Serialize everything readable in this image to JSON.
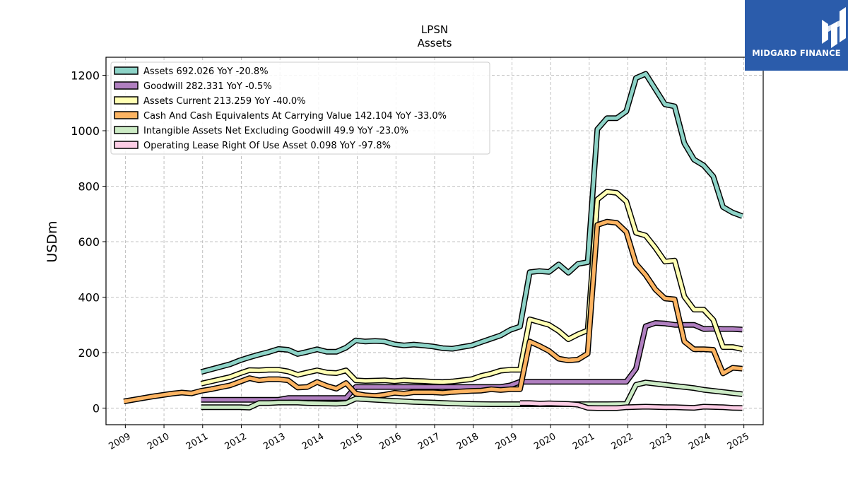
{
  "logo": {
    "text": "MIDGARD FINANCE",
    "icon": "midgard-logo-icon",
    "bg": "#2b5cab"
  },
  "chart_data": {
    "type": "line",
    "title": "LPSN",
    "subtitle": "Assets",
    "ylabel": "USDm",
    "xlabel": "",
    "xlim": [
      2008.5,
      2025.5
    ],
    "ylim": [
      -60,
      1265
    ],
    "yticks": [
      0,
      200,
      400,
      600,
      800,
      1000,
      1200
    ],
    "xticks": [
      2009,
      2010,
      2011,
      2012,
      2013,
      2014,
      2015,
      2016,
      2017,
      2018,
      2019,
      2020,
      2021,
      2022,
      2023,
      2024,
      2025
    ],
    "grid": true,
    "legend_position": "upper-left",
    "series": [
      {
        "name": "Assets",
        "legend": "Assets  692.026 YoY -20.8%",
        "color": "#8dd3c7",
        "points": [
          [
            2010.96,
            130
          ],
          [
            2011.71,
            158
          ],
          [
            2011.96,
            172
          ],
          [
            2012.21,
            183
          ],
          [
            2012.46,
            193
          ],
          [
            2012.71,
            202
          ],
          [
            2012.96,
            213
          ],
          [
            2013.21,
            210
          ],
          [
            2013.46,
            195
          ],
          [
            2013.71,
            203
          ],
          [
            2013.96,
            212
          ],
          [
            2014.21,
            203
          ],
          [
            2014.46,
            203
          ],
          [
            2014.71,
            218
          ],
          [
            2014.96,
            244
          ],
          [
            2015.21,
            240
          ],
          [
            2015.46,
            242
          ],
          [
            2015.71,
            240
          ],
          [
            2015.96,
            230
          ],
          [
            2016.21,
            226
          ],
          [
            2016.46,
            229
          ],
          [
            2016.71,
            226
          ],
          [
            2016.96,
            222
          ],
          [
            2017.21,
            216
          ],
          [
            2017.46,
            214
          ],
          [
            2017.71,
            220
          ],
          [
            2017.96,
            226
          ],
          [
            2018.21,
            238
          ],
          [
            2018.46,
            250
          ],
          [
            2018.71,
            262
          ],
          [
            2018.96,
            282
          ],
          [
            2019.21,
            294
          ],
          [
            2019.46,
            490
          ],
          [
            2019.71,
            494
          ],
          [
            2019.96,
            491
          ],
          [
            2020.21,
            518
          ],
          [
            2020.46,
            488
          ],
          [
            2020.71,
            520
          ],
          [
            2020.96,
            526
          ],
          [
            2021.21,
            1005
          ],
          [
            2021.46,
            1045
          ],
          [
            2021.71,
            1045
          ],
          [
            2021.96,
            1070
          ],
          [
            2022.21,
            1190
          ],
          [
            2022.46,
            1205
          ],
          [
            2022.71,
            1150
          ],
          [
            2022.96,
            1095
          ],
          [
            2023.21,
            1088
          ],
          [
            2023.46,
            955
          ],
          [
            2023.71,
            896
          ],
          [
            2023.96,
            875
          ],
          [
            2024.21,
            835
          ],
          [
            2024.46,
            725
          ],
          [
            2024.71,
            705
          ],
          [
            2024.96,
            692
          ]
        ]
      },
      {
        "name": "Goodwill",
        "legend": "Goodwill  282.331 YoY -0.5%",
        "color": "#b07fc0",
        "points": [
          [
            2010.96,
            30
          ],
          [
            2012.96,
            30
          ],
          [
            2013.21,
            36
          ],
          [
            2014.71,
            36
          ],
          [
            2014.96,
            76
          ],
          [
            2018.71,
            76
          ],
          [
            2018.96,
            82
          ],
          [
            2019.21,
            95
          ],
          [
            2019.46,
            95
          ],
          [
            2021.96,
            95
          ],
          [
            2022.21,
            142
          ],
          [
            2022.46,
            295
          ],
          [
            2022.71,
            307
          ],
          [
            2022.96,
            305
          ],
          [
            2023.21,
            300
          ],
          [
            2023.46,
            300
          ],
          [
            2023.71,
            300
          ],
          [
            2023.96,
            285
          ],
          [
            2024.21,
            286
          ],
          [
            2024.46,
            285
          ],
          [
            2024.71,
            285
          ],
          [
            2024.96,
            283
          ]
        ]
      },
      {
        "name": "Assets Current",
        "legend": "Assets Current  213.259 YoY -40.0%",
        "color": "#ffffb3",
        "points": [
          [
            2010.96,
            88
          ],
          [
            2011.71,
            112
          ],
          [
            2011.96,
            125
          ],
          [
            2012.21,
            137
          ],
          [
            2012.46,
            136
          ],
          [
            2012.71,
            138
          ],
          [
            2012.96,
            138
          ],
          [
            2013.21,
            132
          ],
          [
            2013.46,
            120
          ],
          [
            2013.71,
            128
          ],
          [
            2013.96,
            136
          ],
          [
            2014.21,
            128
          ],
          [
            2014.46,
            126
          ],
          [
            2014.71,
            136
          ],
          [
            2014.96,
            100
          ],
          [
            2015.21,
            98
          ],
          [
            2015.46,
            99
          ],
          [
            2015.71,
            100
          ],
          [
            2015.96,
            97
          ],
          [
            2016.21,
            100
          ],
          [
            2016.46,
            98
          ],
          [
            2016.71,
            97
          ],
          [
            2016.96,
            95
          ],
          [
            2017.21,
            94
          ],
          [
            2017.46,
            96
          ],
          [
            2017.71,
            100
          ],
          [
            2017.96,
            104
          ],
          [
            2018.21,
            116
          ],
          [
            2018.46,
            124
          ],
          [
            2018.71,
            135
          ],
          [
            2018.96,
            138
          ],
          [
            2019.21,
            138
          ],
          [
            2019.46,
            320
          ],
          [
            2019.71,
            310
          ],
          [
            2019.96,
            300
          ],
          [
            2020.21,
            278
          ],
          [
            2020.46,
            248
          ],
          [
            2020.71,
            266
          ],
          [
            2020.96,
            280
          ],
          [
            2021.21,
            752
          ],
          [
            2021.46,
            780
          ],
          [
            2021.71,
            776
          ],
          [
            2021.96,
            745
          ],
          [
            2022.21,
            632
          ],
          [
            2022.46,
            622
          ],
          [
            2022.71,
            578
          ],
          [
            2022.96,
            528
          ],
          [
            2023.21,
            532
          ],
          [
            2023.46,
            402
          ],
          [
            2023.71,
            355
          ],
          [
            2023.96,
            355
          ],
          [
            2024.21,
            318
          ],
          [
            2024.46,
            220
          ],
          [
            2024.71,
            220
          ],
          [
            2024.96,
            213
          ]
        ]
      },
      {
        "name": "Cash And Cash Equivalents At Carrying Value",
        "legend": "Cash And Cash Equivalents At Carrying Value  142.104 YoY -33.0%",
        "color": "#fdb462",
        "points": [
          [
            2008.96,
            24
          ],
          [
            2009.21,
            30
          ],
          [
            2009.46,
            36
          ],
          [
            2009.71,
            42
          ],
          [
            2009.96,
            47
          ],
          [
            2010.21,
            52
          ],
          [
            2010.46,
            56
          ],
          [
            2010.71,
            53
          ],
          [
            2010.96,
            62
          ],
          [
            2011.21,
            68
          ],
          [
            2011.46,
            75
          ],
          [
            2011.71,
            82
          ],
          [
            2011.96,
            95
          ],
          [
            2012.21,
            108
          ],
          [
            2012.46,
            100
          ],
          [
            2012.71,
            104
          ],
          [
            2012.96,
            104
          ],
          [
            2013.21,
            100
          ],
          [
            2013.46,
            74
          ],
          [
            2013.71,
            76
          ],
          [
            2013.96,
            94
          ],
          [
            2014.21,
            80
          ],
          [
            2014.46,
            70
          ],
          [
            2014.71,
            90
          ],
          [
            2014.96,
            52
          ],
          [
            2015.21,
            46
          ],
          [
            2015.46,
            44
          ],
          [
            2015.71,
            48
          ],
          [
            2015.96,
            55
          ],
          [
            2016.21,
            52
          ],
          [
            2016.46,
            57
          ],
          [
            2016.71,
            57
          ],
          [
            2016.96,
            57
          ],
          [
            2017.21,
            55
          ],
          [
            2017.46,
            58
          ],
          [
            2017.71,
            60
          ],
          [
            2017.96,
            62
          ],
          [
            2018.21,
            63
          ],
          [
            2018.46,
            68
          ],
          [
            2018.71,
            65
          ],
          [
            2018.96,
            68
          ],
          [
            2019.21,
            68
          ],
          [
            2019.46,
            240
          ],
          [
            2019.71,
            224
          ],
          [
            2019.96,
            206
          ],
          [
            2020.21,
            178
          ],
          [
            2020.46,
            172
          ],
          [
            2020.71,
            175
          ],
          [
            2020.96,
            196
          ],
          [
            2021.21,
            660
          ],
          [
            2021.46,
            672
          ],
          [
            2021.71,
            668
          ],
          [
            2021.96,
            635
          ],
          [
            2022.21,
            520
          ],
          [
            2022.46,
            480
          ],
          [
            2022.71,
            428
          ],
          [
            2022.96,
            395
          ],
          [
            2023.21,
            392
          ],
          [
            2023.46,
            240
          ],
          [
            2023.71,
            212
          ],
          [
            2023.96,
            212
          ],
          [
            2024.21,
            210
          ],
          [
            2024.46,
            125
          ],
          [
            2024.71,
            145
          ],
          [
            2024.96,
            142
          ]
        ]
      },
      {
        "name": "Intangible Assets Net Excluding Goodwill",
        "legend": "Intangible Assets Net Excluding Goodwill  49.9 YoY -23.0%",
        "color": "#ccebc5",
        "points": [
          [
            2010.96,
            3
          ],
          [
            2011.96,
            3
          ],
          [
            2012.21,
            2
          ],
          [
            2012.46,
            18
          ],
          [
            2012.71,
            18
          ],
          [
            2012.96,
            20
          ],
          [
            2013.46,
            20
          ],
          [
            2013.71,
            18
          ],
          [
            2014.46,
            16
          ],
          [
            2014.71,
            18
          ],
          [
            2014.96,
            34
          ],
          [
            2015.46,
            30
          ],
          [
            2015.96,
            26
          ],
          [
            2016.46,
            22
          ],
          [
            2016.96,
            20
          ],
          [
            2017.46,
            17
          ],
          [
            2017.96,
            15
          ],
          [
            2018.46,
            14
          ],
          [
            2018.96,
            14
          ],
          [
            2019.21,
            14
          ],
          [
            2019.96,
            14
          ],
          [
            2020.46,
            14
          ],
          [
            2020.96,
            14
          ],
          [
            2021.46,
            14
          ],
          [
            2021.96,
            15
          ],
          [
            2022.21,
            84
          ],
          [
            2022.46,
            92
          ],
          [
            2022.71,
            88
          ],
          [
            2022.96,
            84
          ],
          [
            2023.21,
            80
          ],
          [
            2023.46,
            76
          ],
          [
            2023.71,
            72
          ],
          [
            2023.96,
            66
          ],
          [
            2024.21,
            62
          ],
          [
            2024.46,
            58
          ],
          [
            2024.71,
            54
          ],
          [
            2024.96,
            50
          ]
        ]
      },
      {
        "name": "Operating Lease Right Of Use Asset",
        "legend": "Operating Lease Right Of Use Asset  0.098 YoY -97.8%",
        "color": "#fccde5",
        "points": [
          [
            2019.21,
            18
          ],
          [
            2019.46,
            18
          ],
          [
            2019.71,
            16
          ],
          [
            2019.96,
            17
          ],
          [
            2020.21,
            16
          ],
          [
            2020.46,
            15
          ],
          [
            2020.71,
            12
          ],
          [
            2020.96,
            1
          ],
          [
            2021.21,
            0
          ],
          [
            2021.46,
            0
          ],
          [
            2021.71,
            0
          ],
          [
            2021.96,
            3
          ],
          [
            2022.21,
            4
          ],
          [
            2022.46,
            5
          ],
          [
            2022.71,
            4
          ],
          [
            2022.96,
            3
          ],
          [
            2023.21,
            3
          ],
          [
            2023.46,
            2
          ],
          [
            2023.71,
            1
          ],
          [
            2023.96,
            5
          ],
          [
            2024.21,
            4
          ],
          [
            2024.46,
            3
          ],
          [
            2024.71,
            1
          ],
          [
            2024.96,
            0.1
          ]
        ]
      }
    ]
  }
}
